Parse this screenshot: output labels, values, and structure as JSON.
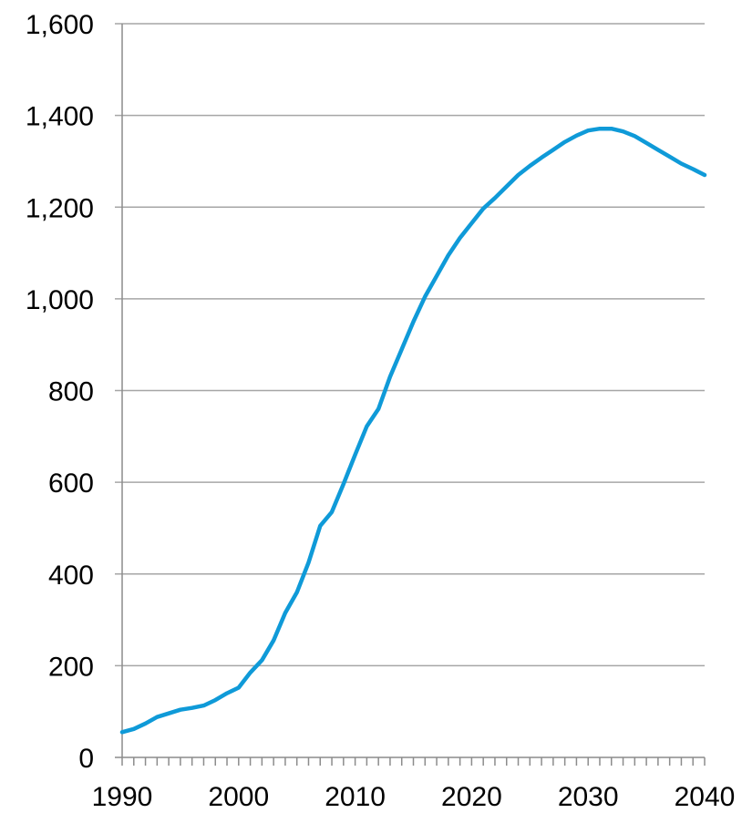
{
  "chart_data": {
    "type": "line",
    "title": "",
    "xlabel": "",
    "ylabel": "",
    "xlim": [
      1990,
      2040
    ],
    "ylim": [
      0,
      1600
    ],
    "y_ticks": [
      0,
      200,
      400,
      600,
      800,
      1000,
      1200,
      1400,
      1600
    ],
    "y_tick_labels": [
      "0",
      "200",
      "400",
      "600",
      "800",
      "1,000",
      "1,200",
      "1,400",
      "1,600"
    ],
    "x_ticks": [
      1990,
      2000,
      2010,
      2020,
      2030,
      2040
    ],
    "x_tick_labels": [
      "1990",
      "2000",
      "2010",
      "2020",
      "2030",
      "2040"
    ],
    "x_minor_tick_step": 1,
    "grid": "horizontal",
    "legend": "none",
    "colors": {
      "series": "#0f9ad8"
    },
    "series": [
      {
        "x": [
          1990,
          1991,
          1992,
          1993,
          1994,
          1995,
          1996,
          1997,
          1998,
          1999,
          2000,
          2001,
          2002,
          2003,
          2004,
          2005,
          2006,
          2007,
          2008,
          2009,
          2010,
          2011,
          2012,
          2013,
          2014,
          2015,
          2016,
          2017,
          2018,
          2019,
          2020,
          2021,
          2022,
          2023,
          2024,
          2025,
          2026,
          2027,
          2028,
          2029,
          2030,
          2031,
          2032,
          2033,
          2034,
          2035,
          2036,
          2037,
          2038,
          2039,
          2040
        ],
        "values": [
          55,
          62,
          74,
          88,
          96,
          104,
          108,
          113,
          125,
          140,
          152,
          185,
          212,
          255,
          315,
          360,
          425,
          505,
          535,
          596,
          660,
          722,
          760,
          830,
          890,
          950,
          1005,
          1050,
          1095,
          1133,
          1165,
          1197,
          1220,
          1245,
          1270,
          1290,
          1308,
          1325,
          1342,
          1356,
          1367,
          1371,
          1371,
          1365,
          1355,
          1340,
          1325,
          1310,
          1295,
          1283,
          1270
        ]
      }
    ]
  }
}
